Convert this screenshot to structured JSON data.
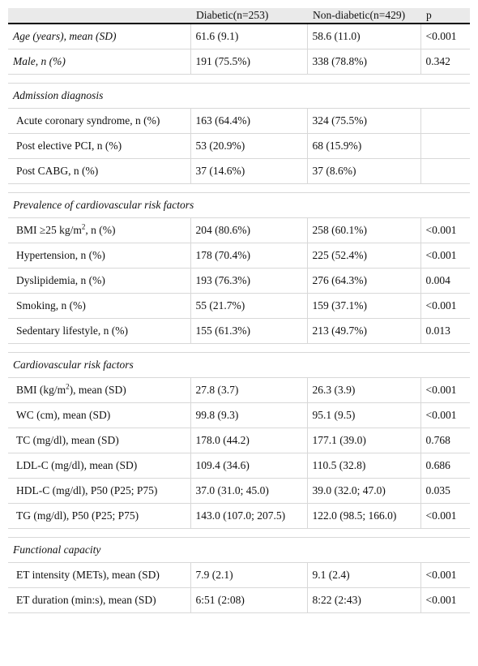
{
  "table": {
    "header": {
      "diabetic": "Diabetic(n=253)",
      "non_diabetic": "Non-diabetic(n=429)",
      "p": "p"
    },
    "summary_rows": [
      {
        "label": "Age (years), mean (SD)",
        "diabetic": "61.6 (9.1)",
        "non_diabetic": "58.6 (11.0)",
        "p": "<0.001"
      },
      {
        "label": "Male, n (%)",
        "diabetic": "191 (75.5%)",
        "non_diabetic": "338 (78.8%)",
        "p": "0.342"
      }
    ],
    "sections": [
      {
        "title": "Admission diagnosis",
        "rows": [
          {
            "label": "Acute coronary syndrome, n (%)",
            "diabetic": "163 (64.4%)",
            "non_diabetic": "324 (75.5%)"
          },
          {
            "label": "Post elective PCI, n (%)",
            "diabetic": "53 (20.9%)",
            "non_diabetic": "68 (15.9%)"
          },
          {
            "label": "Post CABG, n (%)",
            "diabetic": "37 (14.6%)",
            "non_diabetic": "37 (8.6%)"
          }
        ]
      },
      {
        "title": "Prevalence of cardiovascular risk factors",
        "rows": [
          {
            "label": [
              "BMI ≥25 kg/m",
              "2",
              ", n (%)"
            ],
            "diabetic": "204 (80.6%)",
            "non_diabetic": "258 (60.1%)",
            "p": "<0.001"
          },
          {
            "label": "Hypertension, n (%)",
            "diabetic": "178 (70.4%)",
            "non_diabetic": "225 (52.4%)",
            "p": "<0.001"
          },
          {
            "label": "Dyslipidemia, n (%)",
            "diabetic": "193 (76.3%)",
            "non_diabetic": "276 (64.3%)",
            "p": "0.004"
          },
          {
            "label": "Smoking, n (%)",
            "diabetic": "55 (21.7%)",
            "non_diabetic": "159 (37.1%)",
            "p": "<0.001"
          },
          {
            "label": "Sedentary lifestyle, n (%)",
            "diabetic": "155 (61.3%)",
            "non_diabetic": "213 (49.7%)",
            "p": "0.013"
          }
        ]
      },
      {
        "title": "Cardiovascular risk factors",
        "rows": [
          {
            "label": [
              "BMI (kg/m",
              "2",
              "), mean (SD)"
            ],
            "diabetic": "27.8 (3.7)",
            "non_diabetic": "26.3 (3.9)",
            "p": "<0.001"
          },
          {
            "label": "WC (cm), mean (SD)",
            "diabetic": "99.8 (9.3)",
            "non_diabetic": "95.1 (9.5)",
            "p": "<0.001"
          },
          {
            "label": "TC (mg/dl), mean (SD)",
            "diabetic": "178.0 (44.2)",
            "non_diabetic": "177.1 (39.0)",
            "p": "0.768"
          },
          {
            "label": "LDL-C (mg/dl), mean (SD)",
            "diabetic": "109.4 (34.6)",
            "non_diabetic": "110.5 (32.8)",
            "p": "0.686"
          },
          {
            "label": "HDL-C (mg/dl), P50 (P25; P75)",
            "diabetic": "37.0 (31.0; 45.0)",
            "non_diabetic": "39.0 (32.0; 47.0)",
            "p": "0.035"
          },
          {
            "label": "TG (mg/dl), P50 (P25; P75)",
            "diabetic": "143.0 (107.0; 207.5)",
            "non_diabetic": "122.0 (98.5; 166.0)",
            "p": "<0.001"
          }
        ]
      },
      {
        "title": "Functional capacity",
        "rows": [
          {
            "label": "ET intensity (METs), mean (SD)",
            "diabetic": "7.9 (2.1)",
            "non_diabetic": "9.1 (2.4)",
            "p": "<0.001"
          },
          {
            "label": "ET duration (min:s), mean (SD)",
            "diabetic": "6:51 (2:08)",
            "non_diabetic": "8:22 (2:43)",
            "p": "<0.001"
          }
        ]
      }
    ]
  }
}
